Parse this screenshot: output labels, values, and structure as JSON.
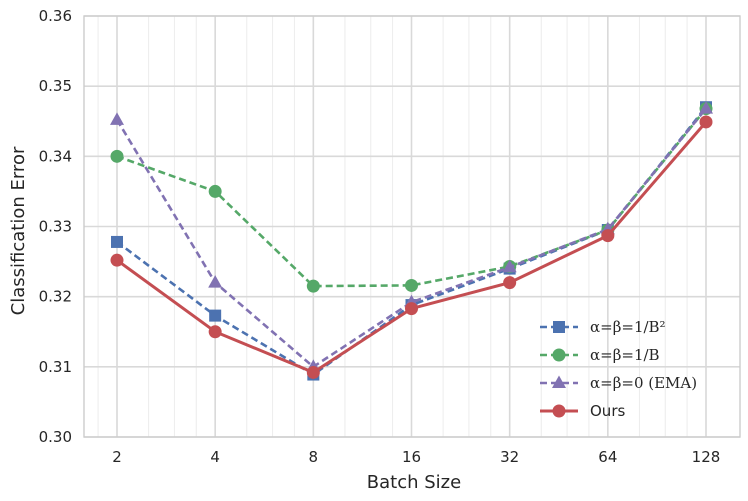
{
  "chart_data": {
    "type": "line",
    "xlabel": "Batch Size",
    "ylabel": "Classification Error",
    "x_scale": "log2",
    "x": [
      2,
      4,
      8,
      16,
      32,
      64,
      128
    ],
    "x_tick_labels": [
      "2",
      "4",
      "8",
      "16",
      "32",
      "64",
      "128"
    ],
    "ylim": [
      0.3,
      0.36
    ],
    "y_ticks": [
      0.3,
      0.31,
      0.32,
      0.33,
      0.34,
      0.35,
      0.36
    ],
    "y_tick_labels": [
      "0.30",
      "0.31",
      "0.32",
      "0.33",
      "0.34",
      "0.35",
      "0.36"
    ],
    "grid": true,
    "legend_position": "bottom-right",
    "series": [
      {
        "name": "α=β=1/B²",
        "color": "#4c72b0",
        "style": "dashed",
        "marker": "square",
        "values": [
          0.3278,
          0.3173,
          0.3089,
          0.3188,
          0.324,
          0.3295,
          0.347
        ]
      },
      {
        "name": "α=β=1/B",
        "color": "#55a868",
        "style": "dashed",
        "marker": "circle",
        "values": [
          0.34,
          0.335,
          0.3215,
          0.3216,
          0.3243,
          0.3295,
          0.3468
        ]
      },
      {
        "name": "α=β=0 (EMA)",
        "color": "#8172b2",
        "style": "dashed",
        "marker": "triangle",
        "values": [
          0.3452,
          0.322,
          0.31,
          0.3192,
          0.3242,
          0.3296,
          0.3468
        ]
      },
      {
        "name": "Ours",
        "color": "#c44e52",
        "style": "solid",
        "marker": "circle",
        "values": [
          0.3252,
          0.315,
          0.3092,
          0.3183,
          0.322,
          0.3287,
          0.3449
        ]
      }
    ]
  }
}
